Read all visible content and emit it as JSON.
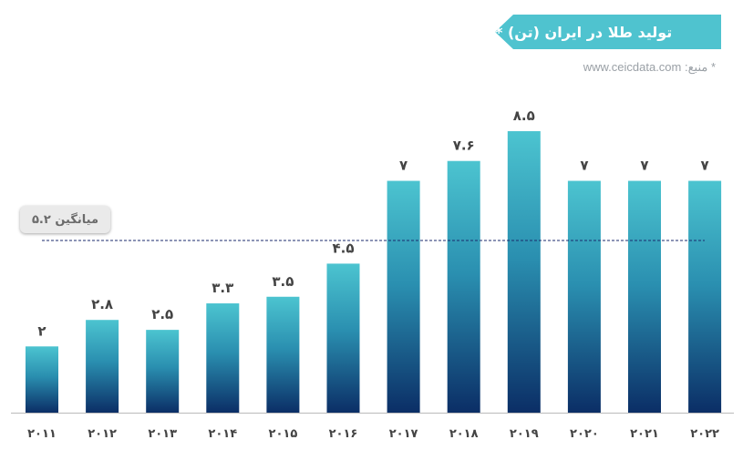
{
  "title": "تولید طلا در ایران (تن) *",
  "source": "* منبع: www.ceicdata.com",
  "average_label": "میانگین ۵.۲",
  "colors": {
    "banner": "#4fc3cf",
    "bar_top": "#4cc4d0",
    "bar_mid": "#2a8fb0",
    "bar_bottom": "#0b2e66",
    "avg_line": "#1a2a6c",
    "axis": "#bbbbbb"
  },
  "chart_data": {
    "type": "bar",
    "title": "تولید طلا در ایران (تن) *",
    "categories": [
      "۲۰۱۱",
      "۲۰۱۲",
      "۲۰۱۳",
      "۲۰۱۴",
      "۲۰۱۵",
      "۲۰۱۶",
      "۲۰۱۷",
      "۲۰۱۸",
      "۲۰۱۹",
      "۲۰۲۰",
      "۲۰۲۱",
      "۲۰۲۲"
    ],
    "values": [
      2,
      2.8,
      2.5,
      3.3,
      3.5,
      4.5,
      7,
      7.6,
      8.5,
      7,
      7,
      7
    ],
    "value_labels": [
      "۲",
      "۲.۸",
      "۲.۵",
      "۳.۳",
      "۳.۵",
      "۴.۵",
      "۷",
      "۷.۶",
      "۸.۵",
      "۷",
      "۷",
      "۷"
    ],
    "average": 5.2,
    "xlabel": "",
    "ylabel": "",
    "ylim": [
      0,
      8.5
    ],
    "grid": false,
    "legend": "none"
  }
}
